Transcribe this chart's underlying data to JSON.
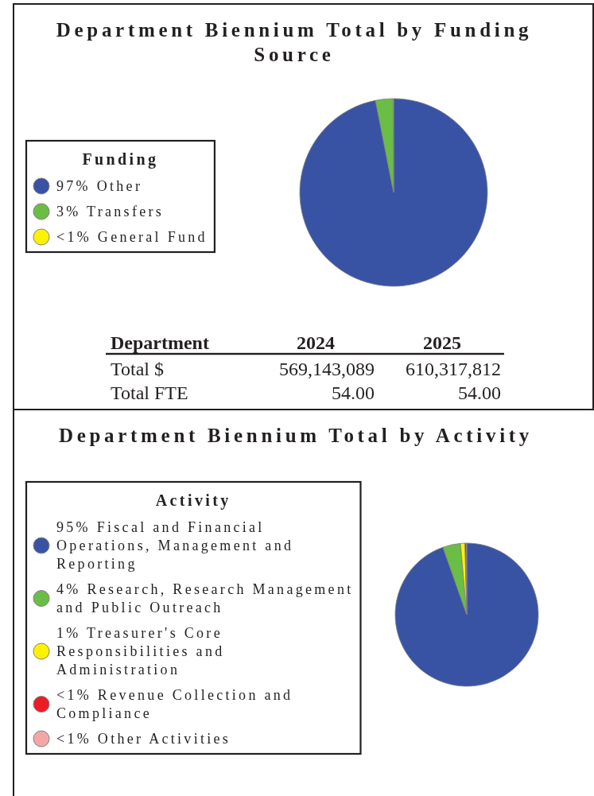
{
  "chart_data": [
    {
      "type": "pie",
      "title": "Department Biennium Total by Funding Source",
      "legend_title": "Funding",
      "legend": "left",
      "categories": [
        "97% Other",
        "3% Transfers",
        "<1% General Fund"
      ],
      "values": [
        96.9,
        3,
        0.1
      ],
      "colors": [
        "#3953a4",
        "#6abd45",
        "#fff200"
      ]
    },
    {
      "type": "other",
      "annotations": [
        "Department",
        "2024",
        "2025",
        "Total $",
        "569,143,089",
        "610,317,812",
        "Total FTE",
        "54.00",
        "54.00"
      ]
    },
    {
      "type": "pie",
      "title": "Department Biennium Total by Activity",
      "legend_title": "Activity",
      "legend": "left",
      "categories": [
        "95% Fiscal and Financial Operations, Management and Reporting",
        "4% Research, Research Management and Public Outreach",
        "1% Treasurer's Core Responsibilities and Administration",
        "<1% Revenue Collection and Compliance",
        "<1% Other Activities"
      ],
      "values": [
        94.6,
        4,
        1,
        0.3,
        0.1
      ],
      "colors": [
        "#3953a4",
        "#6abd45",
        "#fff200",
        "#ed1c24",
        "#f4a6a6"
      ]
    }
  ]
}
